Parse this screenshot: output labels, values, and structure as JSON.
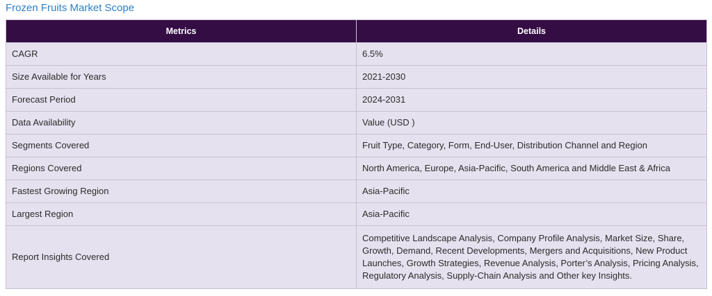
{
  "title": "Frozen Fruits Market Scope",
  "table": {
    "headers": [
      "Metrics",
      "Details"
    ],
    "rows": [
      {
        "metric": "CAGR",
        "detail": "6.5%"
      },
      {
        "metric": "Size Available for Years",
        "detail": "2021-2030"
      },
      {
        "metric": "Forecast Period",
        "detail": "2024-2031"
      },
      {
        "metric": "Data Availability",
        "detail": "Value (USD )"
      },
      {
        "metric": "Segments Covered",
        "detail": "Fruit Type, Category, Form, End-User, Distribution Channel and Region"
      },
      {
        "metric": "Regions Covered",
        "detail": "North America, Europe, Asia-Pacific, South America and Middle East & Africa"
      },
      {
        "metric": "Fastest Growing Region",
        "detail": "Asia-Pacific"
      },
      {
        "metric": "Largest Region",
        "detail": "Asia-Pacific"
      },
      {
        "metric": "Report Insights Covered",
        "detail": "Competitive Landscape Analysis, Company Profile Analysis, Market Size, Share, Growth, Demand, Recent Developments, Mergers and Acquisitions, New Product Launches, Growth Strategies, Revenue Analysis, Porter’s Analysis, Pricing Analysis, Regulatory Analysis, Supply-Chain Analysis and Other key Insights."
      }
    ]
  },
  "colors": {
    "header_bg": "#350d45",
    "row_bg": "#e6e1ef",
    "title": "#2e7fc6"
  }
}
